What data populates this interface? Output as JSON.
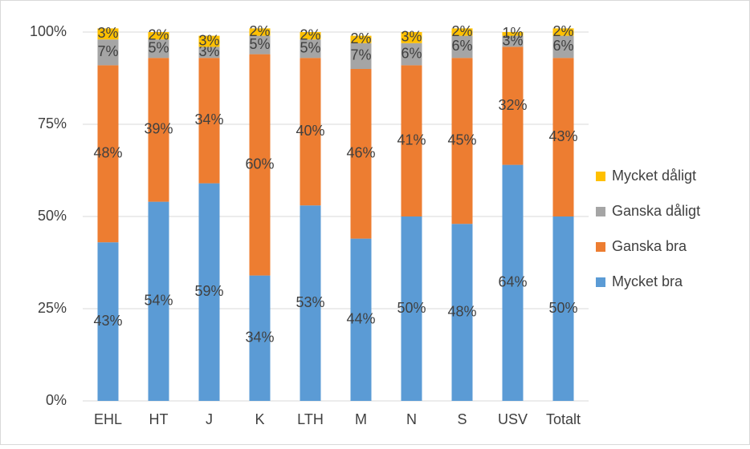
{
  "chart_data": {
    "type": "stacked_bar",
    "categories": [
      "EHL",
      "HT",
      "J",
      "K",
      "LTH",
      "M",
      "N",
      "S",
      "USV",
      "Totalt"
    ],
    "series": [
      {
        "name": "Mycket bra",
        "color": "#5b9bd5",
        "values": [
          43,
          54,
          59,
          34,
          53,
          44,
          50,
          48,
          64,
          50
        ],
        "value_labels": [
          "43%",
          "54%",
          "59%",
          "34%",
          "53%",
          "44%",
          "50%",
          "48%",
          "64%",
          "50%"
        ]
      },
      {
        "name": "Ganska bra",
        "color": "#ed7d31",
        "values": [
          48,
          39,
          34,
          60,
          40,
          46,
          41,
          45,
          32,
          43
        ],
        "value_labels": [
          "48%",
          "39%",
          "34%",
          "60%",
          "40%",
          "46%",
          "41%",
          "45%",
          "32%",
          "43%"
        ]
      },
      {
        "name": "Ganska dåligt",
        "color": "#a5a5a5",
        "values": [
          7,
          5,
          3,
          5,
          5,
          7,
          6,
          6,
          3,
          6
        ],
        "value_labels": [
          "7%",
          "5%",
          "3%",
          "5%",
          "5%",
          "7%",
          "6%",
          "6%",
          "3%",
          "6%"
        ]
      },
      {
        "name": "Mycket dåligt",
        "color": "#ffc000",
        "values": [
          3,
          2,
          3,
          2,
          2,
          2,
          3,
          2,
          1,
          2
        ],
        "value_labels": [
          "3%",
          "2%",
          "3%",
          "2%",
          "2%",
          "2%",
          "3%",
          "2%",
          "1%",
          "2%"
        ]
      }
    ],
    "ylim": [
      0,
      100
    ],
    "yticks": [
      {
        "value": 0,
        "label": "0%"
      },
      {
        "value": 25,
        "label": "25%"
      },
      {
        "value": 50,
        "label": "50%"
      },
      {
        "value": 75,
        "label": "75%"
      },
      {
        "value": 100,
        "label": "100%"
      }
    ],
    "grid": true,
    "legend": "right"
  }
}
